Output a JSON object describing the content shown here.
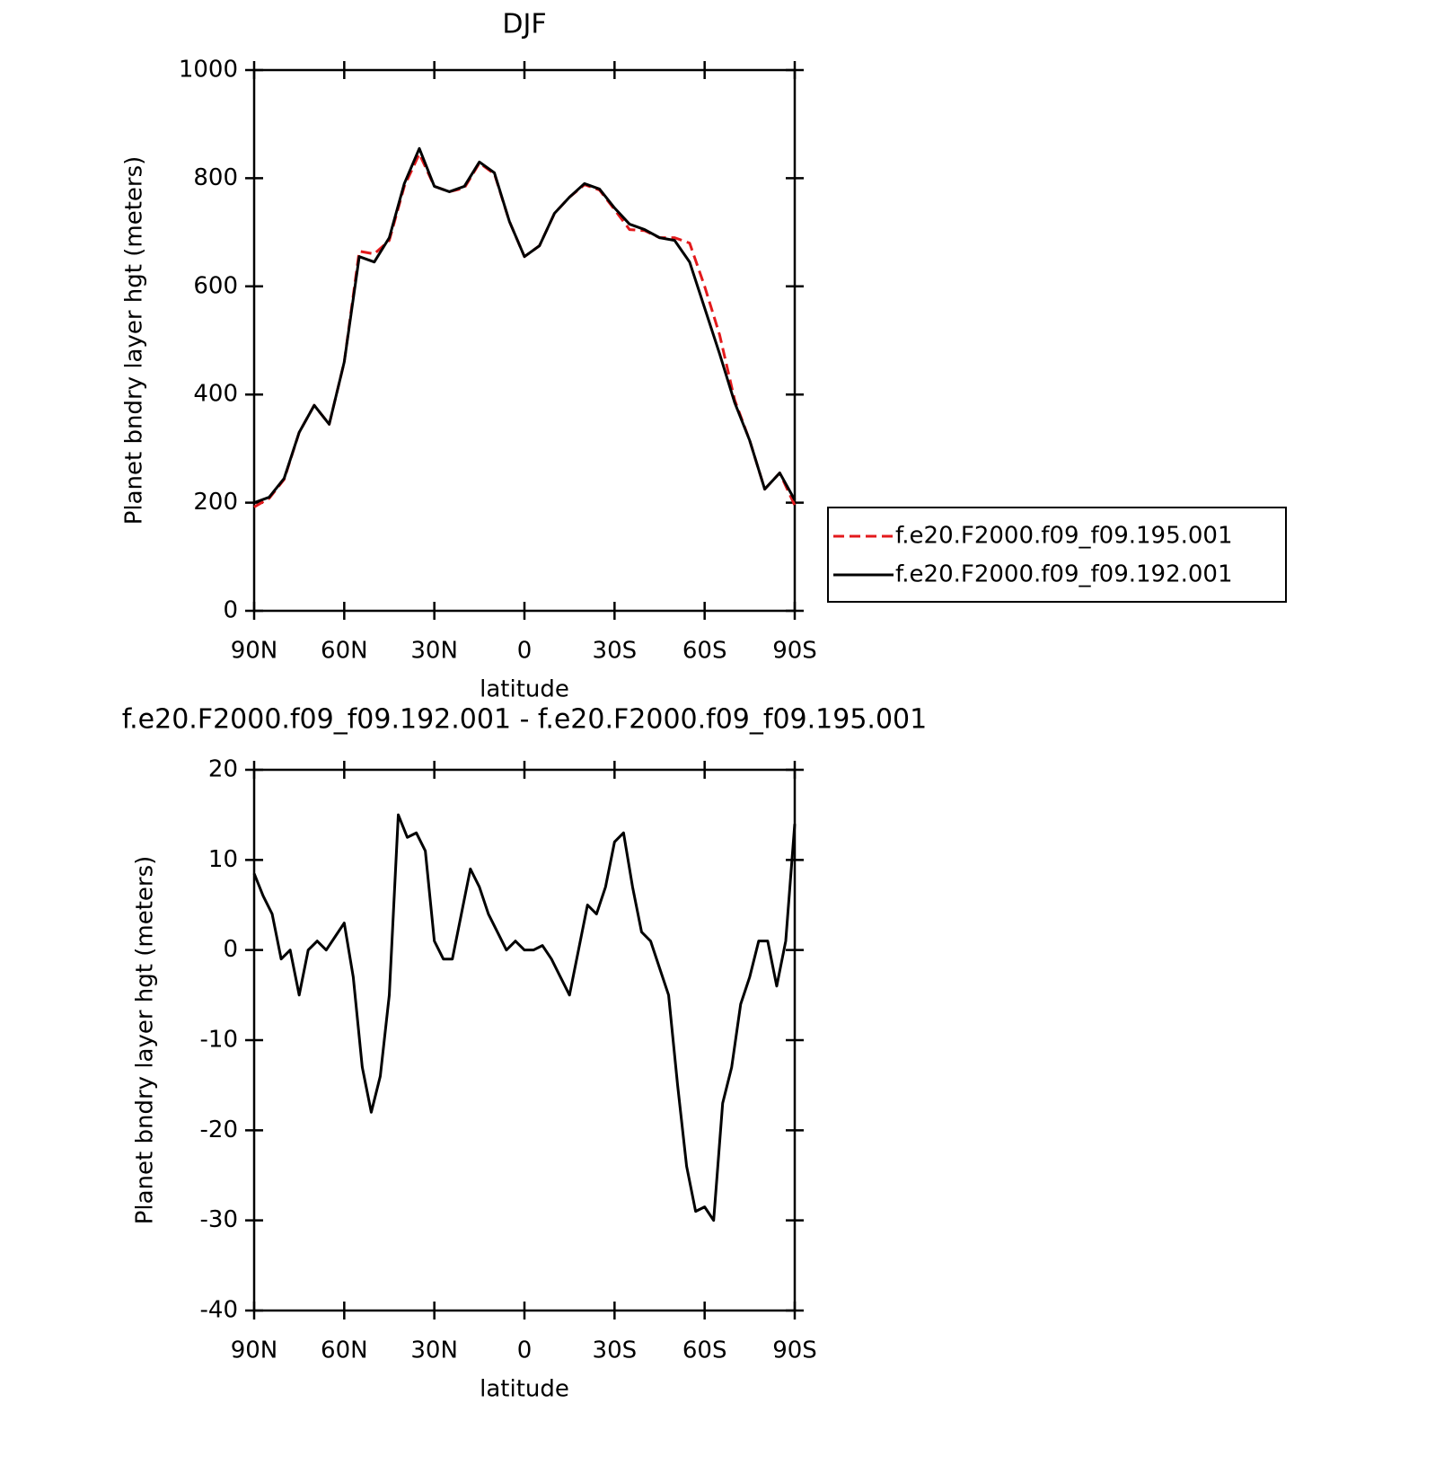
{
  "chart_data": [
    {
      "type": "line",
      "title": "DJF",
      "xlabel": "latitude",
      "ylabel": "Planet bndry layer hgt (meters)",
      "x": [
        90,
        85,
        80,
        75,
        70,
        65,
        60,
        55,
        50,
        45,
        40,
        35,
        30,
        25,
        20,
        15,
        10,
        5,
        0,
        -5,
        -10,
        -15,
        -20,
        -25,
        -30,
        -35,
        -40,
        -45,
        -50,
        -55,
        -60,
        -65,
        -70,
        -75,
        -80,
        -85,
        -90
      ],
      "series": [
        {
          "name": "f.e20.F2000.f09_f09.195.001",
          "color": "#e31a1c",
          "line_style": "dashed",
          "values": [
            192,
            208,
            243,
            330,
            380,
            345,
            460,
            665,
            660,
            685,
            785,
            845,
            785,
            775,
            782,
            828,
            808,
            720,
            655,
            675,
            735,
            765,
            788,
            778,
            742,
            705,
            703,
            690,
            690,
            680,
            600,
            510,
            390,
            315,
            225,
            255,
            195
          ]
        },
        {
          "name": "f.e20.F2000.f09_f09.192.001",
          "color": "#000000",
          "line_style": "solid",
          "values": [
            200,
            210,
            245,
            330,
            380,
            345,
            460,
            655,
            645,
            690,
            790,
            855,
            785,
            775,
            785,
            830,
            810,
            720,
            655,
            675,
            735,
            765,
            790,
            780,
            745,
            715,
            705,
            690,
            685,
            645,
            560,
            475,
            385,
            315,
            225,
            255,
            205
          ]
        }
      ],
      "xlim": [
        90,
        -90
      ],
      "ylim": [
        0,
        1000
      ],
      "xticks": [
        {
          "value": 90,
          "label": "90N"
        },
        {
          "value": 60,
          "label": "60N"
        },
        {
          "value": 30,
          "label": "30N"
        },
        0,
        {
          "value": -30,
          "label": "30S"
        },
        {
          "value": -60,
          "label": "60S"
        },
        {
          "value": -90,
          "label": "90S"
        }
      ],
      "yticks": [
        0,
        200,
        400,
        600,
        800,
        1000
      ],
      "legend": "right"
    },
    {
      "type": "line",
      "title": "f.e20.F2000.f09_f09.192.001 - f.e20.F2000.f09_f09.195.001",
      "xlabel": "latitude",
      "ylabel": "Planet bndry layer hgt (meters)",
      "x": [
        90,
        87,
        84,
        81,
        78,
        75,
        72,
        69,
        66,
        63,
        60,
        57,
        54,
        51,
        48,
        45,
        42,
        39,
        36,
        33,
        30,
        27,
        24,
        21,
        18,
        15,
        12,
        9,
        6,
        3,
        0,
        -3,
        -6,
        -9,
        -12,
        -15,
        -18,
        -21,
        -24,
        -27,
        -30,
        -33,
        -36,
        -39,
        -42,
        -45,
        -48,
        -51,
        -54,
        -57,
        -60,
        -63,
        -66,
        -69,
        -72,
        -75,
        -78,
        -81,
        -84,
        -87,
        -90
      ],
      "values": [
        8.5,
        6,
        4,
        -1,
        0,
        -5,
        0,
        1,
        0,
        1.5,
        3,
        -3,
        -13,
        -18,
        -14,
        -5,
        15,
        12.5,
        13,
        11,
        1,
        -1,
        -1,
        4,
        9,
        7,
        4,
        2,
        0,
        1,
        0,
        0,
        0.5,
        -1,
        -3,
        -5,
        0,
        5,
        4,
        7,
        12,
        13,
        7,
        2,
        1,
        -2,
        -5,
        -15,
        -24,
        -29,
        -28.5,
        -30,
        -17,
        -13,
        -6,
        -3,
        1,
        1,
        -4,
        1,
        14
      ],
      "color": "#000000",
      "xlim": [
        90,
        -90
      ],
      "ylim": [
        -40,
        20
      ],
      "xticks": [
        {
          "value": 90,
          "label": "90N"
        },
        {
          "value": 60,
          "label": "60N"
        },
        {
          "value": 30,
          "label": "30N"
        },
        0,
        {
          "value": -30,
          "label": "30S"
        },
        {
          "value": -60,
          "label": "60S"
        },
        {
          "value": -90,
          "label": "90S"
        }
      ],
      "yticks": [
        -40,
        -30,
        -20,
        -10,
        0,
        10,
        20
      ]
    }
  ]
}
